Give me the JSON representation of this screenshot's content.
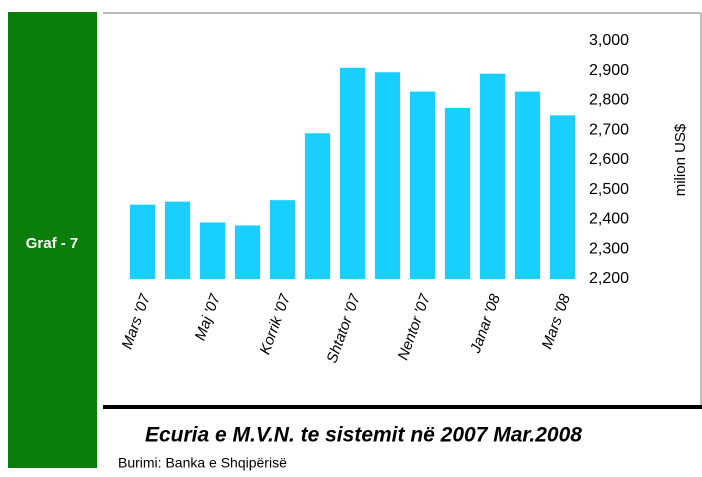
{
  "sidebar": "Graf - 7",
  "chart_data": {
    "type": "bar",
    "title": "Ecuria e M.V.N. te sistemit në 2007 Mar.2008",
    "source": "Burimi: Banka e Shqipërisë",
    "y_label": "milion US$",
    "categories": [
      "Mars '07",
      null,
      "Maj '07",
      null,
      "Korrik '07",
      null,
      "Shtator '07",
      null,
      "Nentor '07",
      null,
      "Janar '08",
      null,
      "Mars '08"
    ],
    "values": [
      2450,
      2460,
      2390,
      2380,
      2465,
      2690,
      2910,
      2895,
      2830,
      2775,
      2890,
      2830,
      2750
    ],
    "color": "#19cfff",
    "ylim": [
      2200,
      3000
    ],
    "yticks": [
      {
        "value": 2200,
        "label": "2,200"
      },
      {
        "value": 2300,
        "label": "2,300"
      },
      {
        "value": 2400,
        "label": "2,400"
      },
      {
        "value": 2500,
        "label": "2,500"
      },
      {
        "value": 2600,
        "label": "2,600"
      },
      {
        "value": 2700,
        "label": "2,700"
      },
      {
        "value": 2800,
        "label": "2,800"
      },
      {
        "value": 2900,
        "label": "2,900"
      },
      {
        "value": 3000,
        "label": "3,000"
      }
    ],
    "grid": false
  }
}
